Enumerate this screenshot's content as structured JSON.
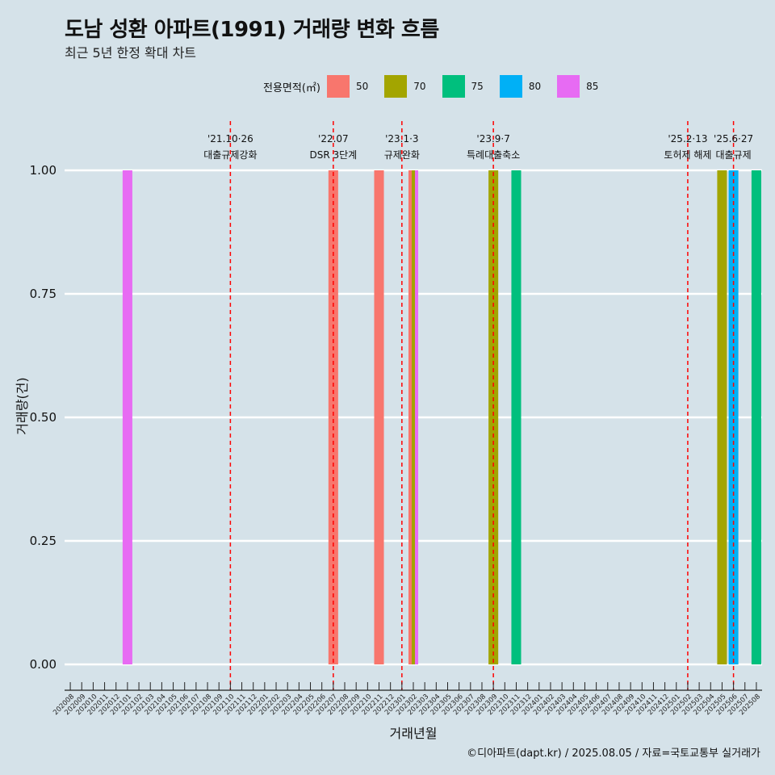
{
  "title": "도남 성환 아파트(1991) 거래량 변화 흐름",
  "subtitle": "최근 5년 한정 확대 차트",
  "caption": "©디아파트(dapt.kr) / 2025.08.05 / 자료=국토교통부 실거래가",
  "legend": {
    "title": "전용면적(㎡)",
    "items": [
      {
        "label": "50",
        "color": "#F8766D"
      },
      {
        "label": "70",
        "color": "#A3A500"
      },
      {
        "label": "75",
        "color": "#00BF7D"
      },
      {
        "label": "80",
        "color": "#00B0F6"
      },
      {
        "label": "85",
        "color": "#E76BF3"
      }
    ]
  },
  "chart_data": {
    "type": "bar",
    "xlabel": "거래년월",
    "ylabel": "거래량(건)",
    "ylim": [
      0,
      1
    ],
    "yticks": [
      "0.00",
      "0.25",
      "0.50",
      "0.75",
      "1.00"
    ],
    "categories": [
      "202008",
      "202009",
      "202010",
      "202011",
      "202012",
      "202101",
      "202102",
      "202103",
      "202104",
      "202105",
      "202106",
      "202107",
      "202108",
      "202109",
      "202110",
      "202111",
      "202112",
      "202201",
      "202202",
      "202203",
      "202204",
      "202205",
      "202206",
      "202207",
      "202208",
      "202209",
      "202210",
      "202211",
      "202212",
      "202301",
      "202302",
      "202303",
      "202304",
      "202305",
      "202306",
      "202307",
      "202308",
      "202309",
      "202310",
      "202311",
      "202312",
      "202401",
      "202402",
      "202403",
      "202404",
      "202405",
      "202406",
      "202407",
      "202408",
      "202409",
      "202410",
      "202411",
      "202412",
      "202501",
      "202502",
      "202503",
      "202504",
      "202505",
      "202506",
      "202507",
      "202508"
    ],
    "bars": [
      {
        "month": "202101",
        "area": "85",
        "value": 1
      },
      {
        "month": "202207",
        "area": "50",
        "value": 1
      },
      {
        "month": "202211",
        "area": "50",
        "value": 1
      },
      {
        "month": "202302",
        "area": "50",
        "value": 1
      },
      {
        "month": "202302",
        "area": "70",
        "value": 1
      },
      {
        "month": "202302",
        "area": "85",
        "value": 1
      },
      {
        "month": "202309",
        "area": "70",
        "value": 1
      },
      {
        "month": "202311",
        "area": "75",
        "value": 1
      },
      {
        "month": "202505",
        "area": "70",
        "value": 1
      },
      {
        "month": "202506",
        "area": "80",
        "value": 1
      },
      {
        "month": "202508",
        "area": "75",
        "value": 1
      }
    ],
    "events": [
      {
        "month": "202110",
        "date": "'21.10·26",
        "label": "대출규제강화"
      },
      {
        "month": "202207",
        "date": "'22.07",
        "label": "DSR 3단계"
      },
      {
        "month": "202301",
        "date": "'23.1·3",
        "label": "규제완화"
      },
      {
        "month": "202309",
        "date": "'23.9·7",
        "label": "특례대출축소"
      },
      {
        "month": "202502",
        "date": "'25.2·13",
        "label": "토허제 해제"
      },
      {
        "month": "202506",
        "date": "'25.6·27",
        "label": "대출규제"
      }
    ],
    "grid": true,
    "legend_position": "top"
  }
}
